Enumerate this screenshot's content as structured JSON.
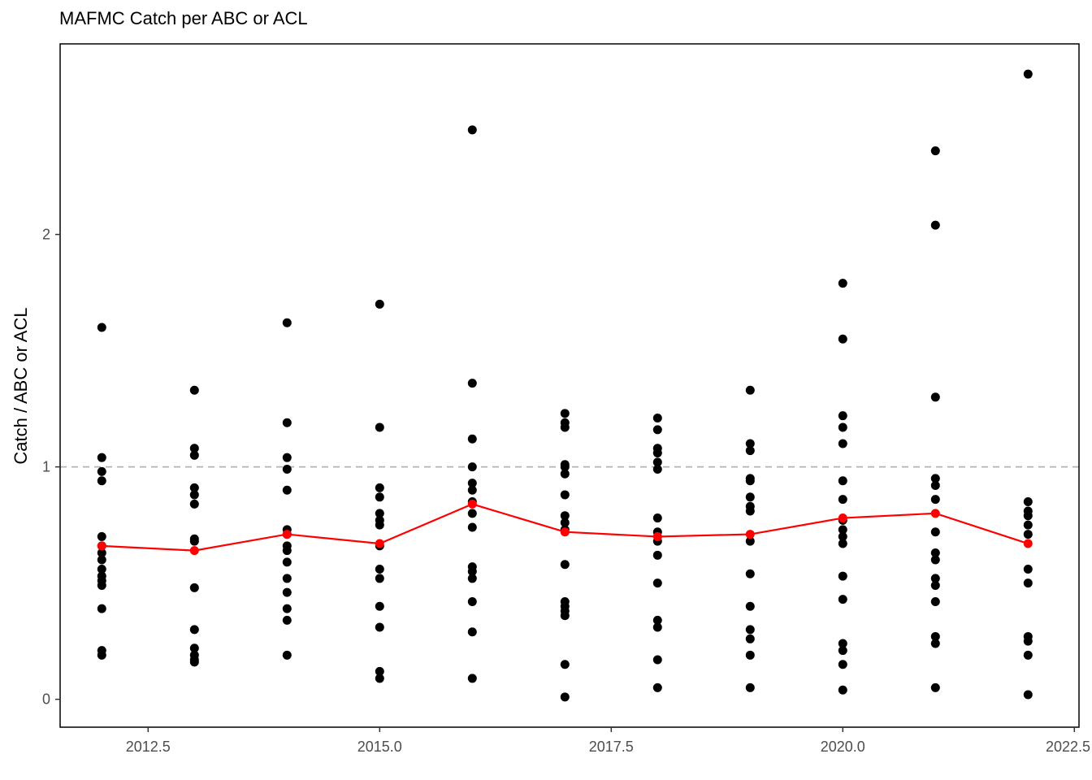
{
  "chart_data": {
    "type": "scatter",
    "title": "MAFMC Catch per ABC or ACL",
    "xlabel": "",
    "ylabel": "Catch / ABC or ACL",
    "xlim": [
      2011.55,
      2022.55
    ],
    "ylim": [
      -0.12,
      2.82
    ],
    "x_ticks": [
      2012.5,
      2015.0,
      2017.5,
      2020.0,
      2022.5
    ],
    "x_tick_labels": [
      "2012.5",
      "2015.0",
      "2017.5",
      "2020.0",
      "2022.5"
    ],
    "y_ticks": [
      0,
      1,
      2
    ],
    "y_tick_labels": [
      "0",
      "1",
      "2"
    ],
    "reference_line": {
      "y": 1.0,
      "style": "dashed",
      "color": "#b3b3b3"
    },
    "grid": false,
    "series": [
      {
        "color": "#000000",
        "points": [
          {
            "x": 2012,
            "values": [
              1.6,
              1.04,
              0.98,
              0.94,
              0.7,
              0.66,
              0.63,
              0.6,
              0.56,
              0.53,
              0.51,
              0.49,
              0.39,
              0.21,
              0.19
            ]
          },
          {
            "x": 2013,
            "values": [
              1.33,
              1.08,
              1.05,
              0.91,
              0.88,
              0.84,
              0.69,
              0.68,
              0.48,
              0.3,
              0.22,
              0.19,
              0.17,
              0.16
            ]
          },
          {
            "x": 2014,
            "values": [
              1.62,
              1.19,
              1.04,
              0.99,
              0.9,
              0.73,
              0.71,
              0.66,
              0.64,
              0.59,
              0.52,
              0.46,
              0.39,
              0.34,
              0.19
            ]
          },
          {
            "x": 2015,
            "values": [
              1.7,
              1.17,
              0.91,
              0.87,
              0.8,
              0.77,
              0.75,
              0.66,
              0.56,
              0.52,
              0.4,
              0.31,
              0.12,
              0.09
            ]
          },
          {
            "x": 2016,
            "values": [
              2.45,
              1.36,
              1.12,
              1.0,
              0.93,
              0.9,
              0.85,
              0.8,
              0.74,
              0.57,
              0.55,
              0.52,
              0.42,
              0.29,
              0.09
            ]
          },
          {
            "x": 2017,
            "values": [
              1.23,
              1.19,
              1.17,
              1.01,
              1.0,
              0.97,
              0.88,
              0.79,
              0.76,
              0.73,
              0.58,
              0.42,
              0.4,
              0.38,
              0.36,
              0.15,
              0.01
            ]
          },
          {
            "x": 2018,
            "values": [
              1.21,
              1.16,
              1.08,
              1.06,
              1.02,
              0.99,
              0.78,
              0.72,
              0.68,
              0.62,
              0.5,
              0.34,
              0.31,
              0.17,
              0.05
            ]
          },
          {
            "x": 2019,
            "values": [
              1.33,
              1.1,
              1.07,
              0.95,
              0.94,
              0.87,
              0.83,
              0.81,
              0.68,
              0.54,
              0.4,
              0.3,
              0.26,
              0.19,
              0.05
            ]
          },
          {
            "x": 2020,
            "values": [
              1.79,
              1.55,
              1.22,
              1.17,
              1.1,
              0.94,
              0.86,
              0.77,
              0.73,
              0.7,
              0.67,
              0.53,
              0.43,
              0.24,
              0.21,
              0.15,
              0.04
            ]
          },
          {
            "x": 2021,
            "values": [
              2.36,
              2.04,
              1.3,
              0.95,
              0.92,
              0.86,
              0.72,
              0.63,
              0.6,
              0.52,
              0.49,
              0.42,
              0.27,
              0.24,
              0.05
            ]
          },
          {
            "x": 2022,
            "values": [
              2.69,
              0.85,
              0.81,
              0.79,
              0.75,
              0.71,
              0.56,
              0.5,
              0.27,
              0.25,
              0.19,
              0.02
            ]
          }
        ]
      },
      {
        "type": "line",
        "color": "#ff0000",
        "x": [
          2012,
          2013,
          2014,
          2015,
          2016,
          2017,
          2018,
          2019,
          2020,
          2021,
          2022
        ],
        "values": [
          0.66,
          0.64,
          0.71,
          0.67,
          0.84,
          0.72,
          0.7,
          0.71,
          0.78,
          0.8,
          0.67
        ]
      }
    ]
  }
}
